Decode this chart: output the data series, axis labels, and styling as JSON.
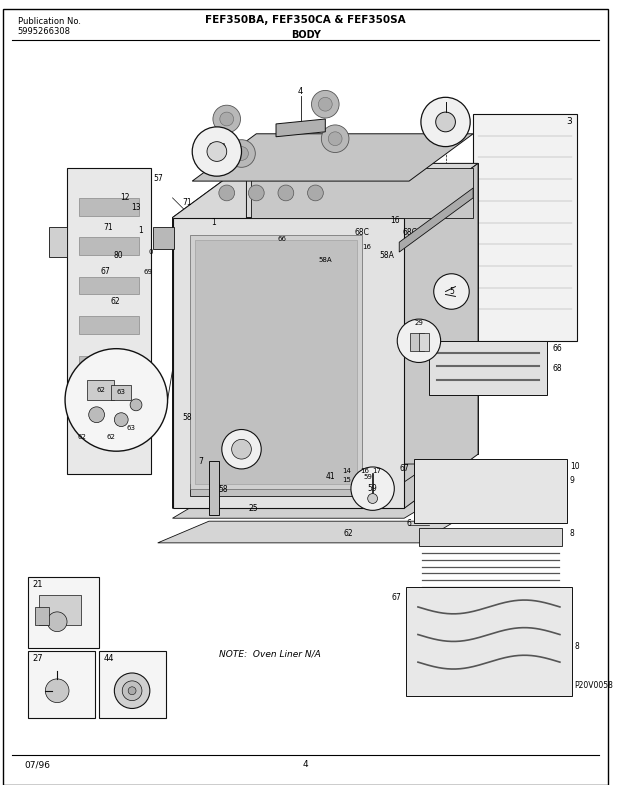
{
  "title_center": "FEF350BA, FEF350CA & FEF350SA",
  "title_sub": "BODY",
  "pub_label": "Publication No.",
  "pub_number": "5995266308",
  "date": "07/96",
  "page": "4",
  "note_text": "NOTE:  Oven Liner N/A",
  "part_code": "P20V0058",
  "bg_color": "#ffffff",
  "border_color": "#000000",
  "text_color": "#000000",
  "fig_width": 6.2,
  "fig_height": 7.91,
  "dpi": 100
}
